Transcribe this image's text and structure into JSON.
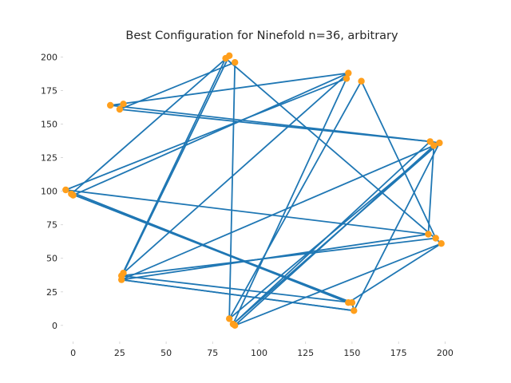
{
  "chart_data": {
    "type": "line",
    "title": "Best Configuration for Ninefold n=36, arbitrary",
    "xlabel": "",
    "ylabel": "",
    "xlim": [
      -5,
      208
    ],
    "ylim": [
      -12,
      208
    ],
    "xticks": [
      0,
      25,
      50,
      75,
      100,
      125,
      150,
      175,
      200
    ],
    "yticks": [
      0,
      25,
      50,
      75,
      100,
      125,
      150,
      175,
      200
    ],
    "grid": false,
    "legend": "none",
    "line_color": "#1f77b4",
    "marker_color": "#ff9f1c",
    "points": [
      [
        84,
        5
      ],
      [
        86,
        1
      ],
      [
        87,
        0
      ],
      [
        148,
        17
      ],
      [
        150,
        17
      ],
      [
        151,
        11
      ],
      [
        191,
        68
      ],
      [
        195,
        65
      ],
      [
        198,
        61
      ],
      [
        192,
        137
      ],
      [
        194,
        134
      ],
      [
        197,
        136
      ],
      [
        148,
        188
      ],
      [
        147,
        184
      ],
      [
        155,
        182
      ],
      [
        82,
        199
      ],
      [
        84,
        201
      ],
      [
        87,
        196
      ],
      [
        20,
        164
      ],
      [
        25,
        161
      ],
      [
        27,
        165
      ],
      [
        -4,
        101
      ],
      [
        -1,
        98
      ],
      [
        0,
        97
      ],
      [
        26,
        37
      ],
      [
        27,
        39
      ],
      [
        26,
        34
      ]
    ],
    "edges": [
      [
        15,
        8
      ],
      [
        15,
        24
      ],
      [
        16,
        25
      ],
      [
        16,
        22
      ],
      [
        17,
        0
      ],
      [
        17,
        19
      ],
      [
        19,
        9
      ],
      [
        20,
        18
      ],
      [
        18,
        12
      ],
      [
        12,
        23
      ],
      [
        12,
        25
      ],
      [
        13,
        1
      ],
      [
        14,
        7
      ],
      [
        14,
        0
      ],
      [
        9,
        11
      ],
      [
        9,
        18
      ],
      [
        10,
        2
      ],
      [
        10,
        26
      ],
      [
        11,
        1
      ],
      [
        11,
        5
      ],
      [
        6,
        10
      ],
      [
        6,
        26
      ],
      [
        6,
        21
      ],
      [
        7,
        24
      ],
      [
        8,
        2
      ],
      [
        3,
        21
      ],
      [
        4,
        5
      ],
      [
        4,
        22
      ],
      [
        5,
        26
      ],
      [
        22,
        3
      ],
      [
        21,
        13
      ],
      [
        24,
        4
      ],
      [
        26,
        5
      ],
      [
        1,
        9
      ],
      [
        0,
        11
      ],
      [
        3,
        8
      ]
    ]
  }
}
